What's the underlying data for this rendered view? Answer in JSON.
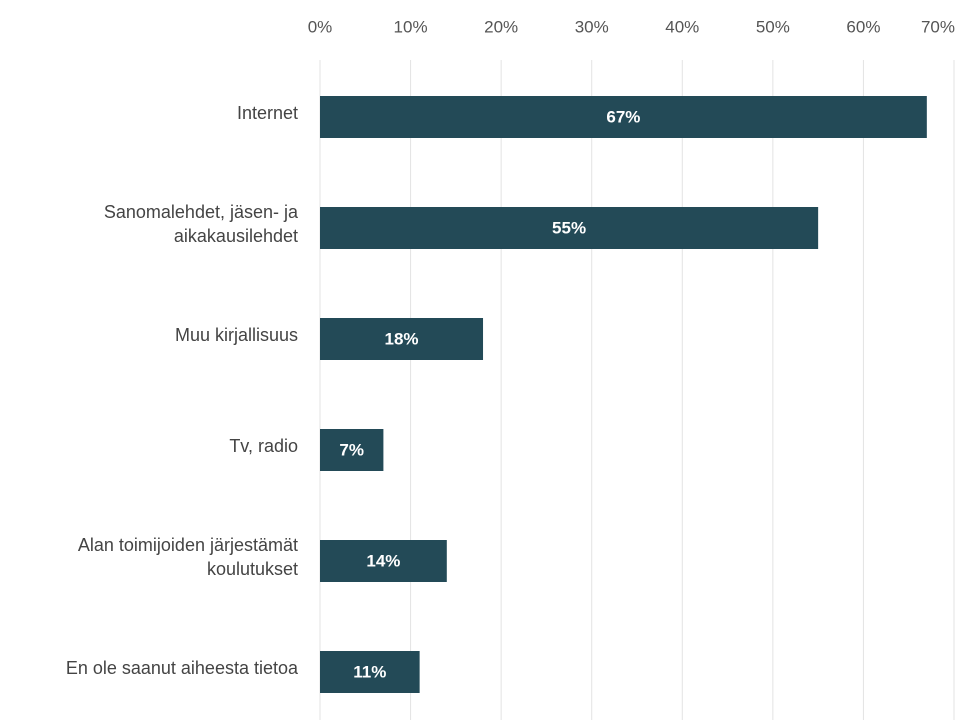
{
  "chart_data": {
    "type": "bar",
    "orientation": "horizontal",
    "categories": [
      "Internet",
      "Sanomalehdet, jäsen- ja aikakausilehdet",
      "Muu kirjallisuus",
      "Tv, radio",
      "Alan toimijoiden järjestämät koulutukset",
      "En ole saanut aiheesta tietoa"
    ],
    "values": [
      67,
      55,
      18,
      7,
      14,
      11
    ],
    "value_labels": [
      "67%",
      "55%",
      "18%",
      "7%",
      "14%",
      "11%"
    ],
    "color": "#234a57",
    "xlim": [
      0,
      70
    ],
    "xticks": [
      {
        "value": 0,
        "label": "0%"
      },
      {
        "value": 10,
        "label": "10%"
      },
      {
        "value": 20,
        "label": "20%"
      },
      {
        "value": 30,
        "label": "30%"
      },
      {
        "value": 40,
        "label": "40%"
      },
      {
        "value": 50,
        "label": "50%"
      },
      {
        "value": 60,
        "label": "60%"
      },
      {
        "value": 70,
        "label": "70%"
      }
    ],
    "grid": true
  }
}
